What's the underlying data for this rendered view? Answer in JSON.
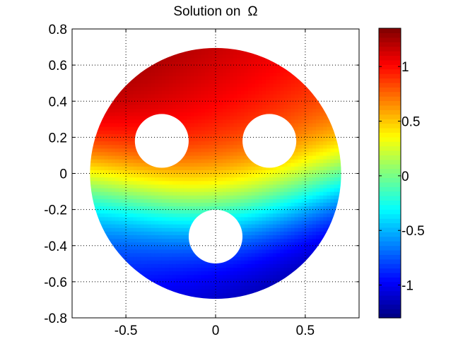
{
  "chart_data": {
    "type": "heatmap",
    "title": "Solution on",
    "title_symbol": "Ω",
    "xlabel": "",
    "ylabel": "",
    "xlim": [
      -0.8,
      0.8
    ],
    "ylim": [
      -0.8,
      0.8
    ],
    "x_ticks": [
      -0.5,
      0,
      0.5
    ],
    "x_tick_labels": [
      "-0.5",
      "0",
      "0.5"
    ],
    "y_ticks": [
      0.8,
      0.6,
      0.4,
      0.2,
      0,
      -0.2,
      -0.4,
      -0.6,
      -0.8
    ],
    "y_tick_labels": [
      "0.8",
      "0.6",
      "0.4",
      "0.2",
      "0",
      "-0.2",
      "-0.4",
      "-0.6",
      "-0.8"
    ],
    "grid": true,
    "domain": {
      "outer_circle": {
        "cx": 0,
        "cy": 0,
        "r": 0.7
      },
      "holes": [
        {
          "cx": -0.3,
          "cy": 0.18,
          "r": 0.15
        },
        {
          "cx": 0.3,
          "cy": 0.18,
          "r": 0.15
        },
        {
          "cx": 0.0,
          "cy": -0.35,
          "r": 0.15
        }
      ]
    },
    "colormap": "jet",
    "color_range": [
      -1.3,
      1.35
    ],
    "colorbar": {
      "ticks": [
        1,
        0.5,
        0,
        -0.5,
        -1
      ],
      "tick_labels": [
        "1",
        "0.5",
        "0",
        "-0.5",
        "-1"
      ],
      "placement": "right"
    }
  }
}
